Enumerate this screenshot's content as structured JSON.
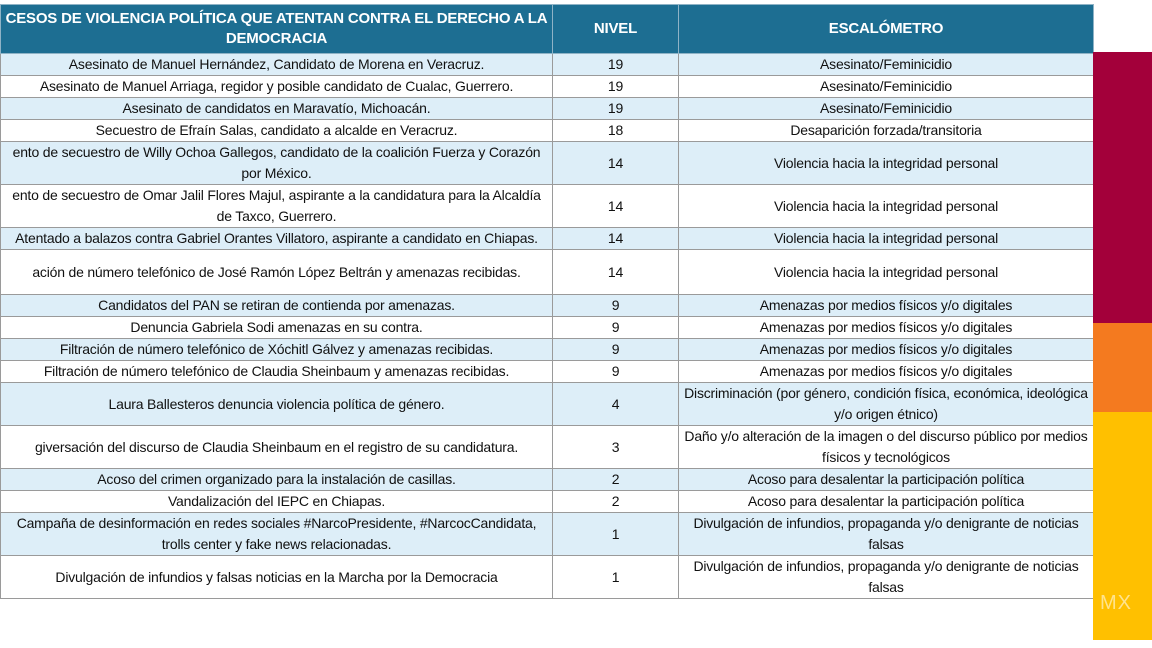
{
  "table": {
    "header": [
      "CESOS DE VIOLENCIA POLÍTICA QUE ATENTAN CONTRA EL DERECHO A LA DEMOCRACIA",
      "NIVEL",
      "ESCALÓMETRO"
    ],
    "rows": [
      [
        "Asesinato de Manuel Hernández, Candidato de Morena en Veracruz.",
        19,
        "Asesinato/Feminicidio"
      ],
      [
        "Asesinato de Manuel Arriaga, regidor y posible candidato de Cualac, Guerrero.",
        19,
        "Asesinato/Feminicidio"
      ],
      [
        "Asesinato de candidatos en Maravatío, Michoacán.",
        19,
        "Asesinato/Feminicidio"
      ],
      [
        "Secuestro de Efraín Salas, candidato a alcalde en Veracruz.",
        18,
        "Desaparición forzada/transitoria"
      ],
      [
        "ento de secuestro de Willy Ochoa Gallegos, candidato de la coalición Fuerza y Corazón por México.",
        14,
        "Violencia hacia la integridad personal"
      ],
      [
        "ento de secuestro de Omar Jalil Flores Majul, aspirante a la candidatura para la Alcaldía de Taxco, Guerrero.",
        14,
        "Violencia hacia la integridad personal"
      ],
      [
        "Atentado a balazos contra Gabriel Orantes Villatoro, aspirante a candidato en Chiapas.",
        14,
        "Violencia hacia la integridad personal"
      ],
      [
        "ación de número telefónico de José Ramón López Beltrán y amenazas recibidas.",
        14,
        "Violencia hacia la integridad personal"
      ],
      [
        "Candidatos del PAN se retiran de contienda por amenazas.",
        9,
        "Amenazas por medios físicos y/o digitales"
      ],
      [
        "Denuncia Gabriela Sodi amenazas en su contra.",
        9,
        "Amenazas por medios físicos y/o digitales"
      ],
      [
        "Filtración de número telefónico de Xóchitl Gálvez y amenazas recibidas.",
        9,
        "Amenazas por medios físicos y/o digitales"
      ],
      [
        "Filtración de número telefónico de Claudia Sheinbaum y amenazas recibidas.",
        9,
        "Amenazas por medios físicos y/o digitales"
      ],
      [
        "Laura Ballesteros denuncia violencia política de género.",
        4,
        "Discriminación (por género, condición física, económica, ideológica y/o origen étnico)"
      ],
      [
        "giversación del discurso de Claudia Sheinbaum en el registro de su candidatura.",
        3,
        "Daño y/o alteración de la imagen o del discurso público por medios físicos y tecnológicos"
      ],
      [
        "Acoso del crimen organizado para la instalación de casillas.",
        2,
        "Acoso para desalentar la participación política"
      ],
      [
        "Vandalización del IEPC en Chiapas.",
        2,
        "Acoso para desalentar la participación política"
      ],
      [
        "Campaña de desinformación en redes sociales #NarcoPresidente, #NarcocCandidata, trolls center y fake news relacionadas.",
        1,
        "Divulgación de infundios, propaganda y/o denigrante de noticias falsas"
      ],
      [
        "Divulgación de infundios y falsas noticias en la Marcha por la Democracia",
        1,
        "Divulgación de infundios, propaganda y/o denigrante de noticias falsas"
      ]
    ]
  },
  "watermark": "MX"
}
